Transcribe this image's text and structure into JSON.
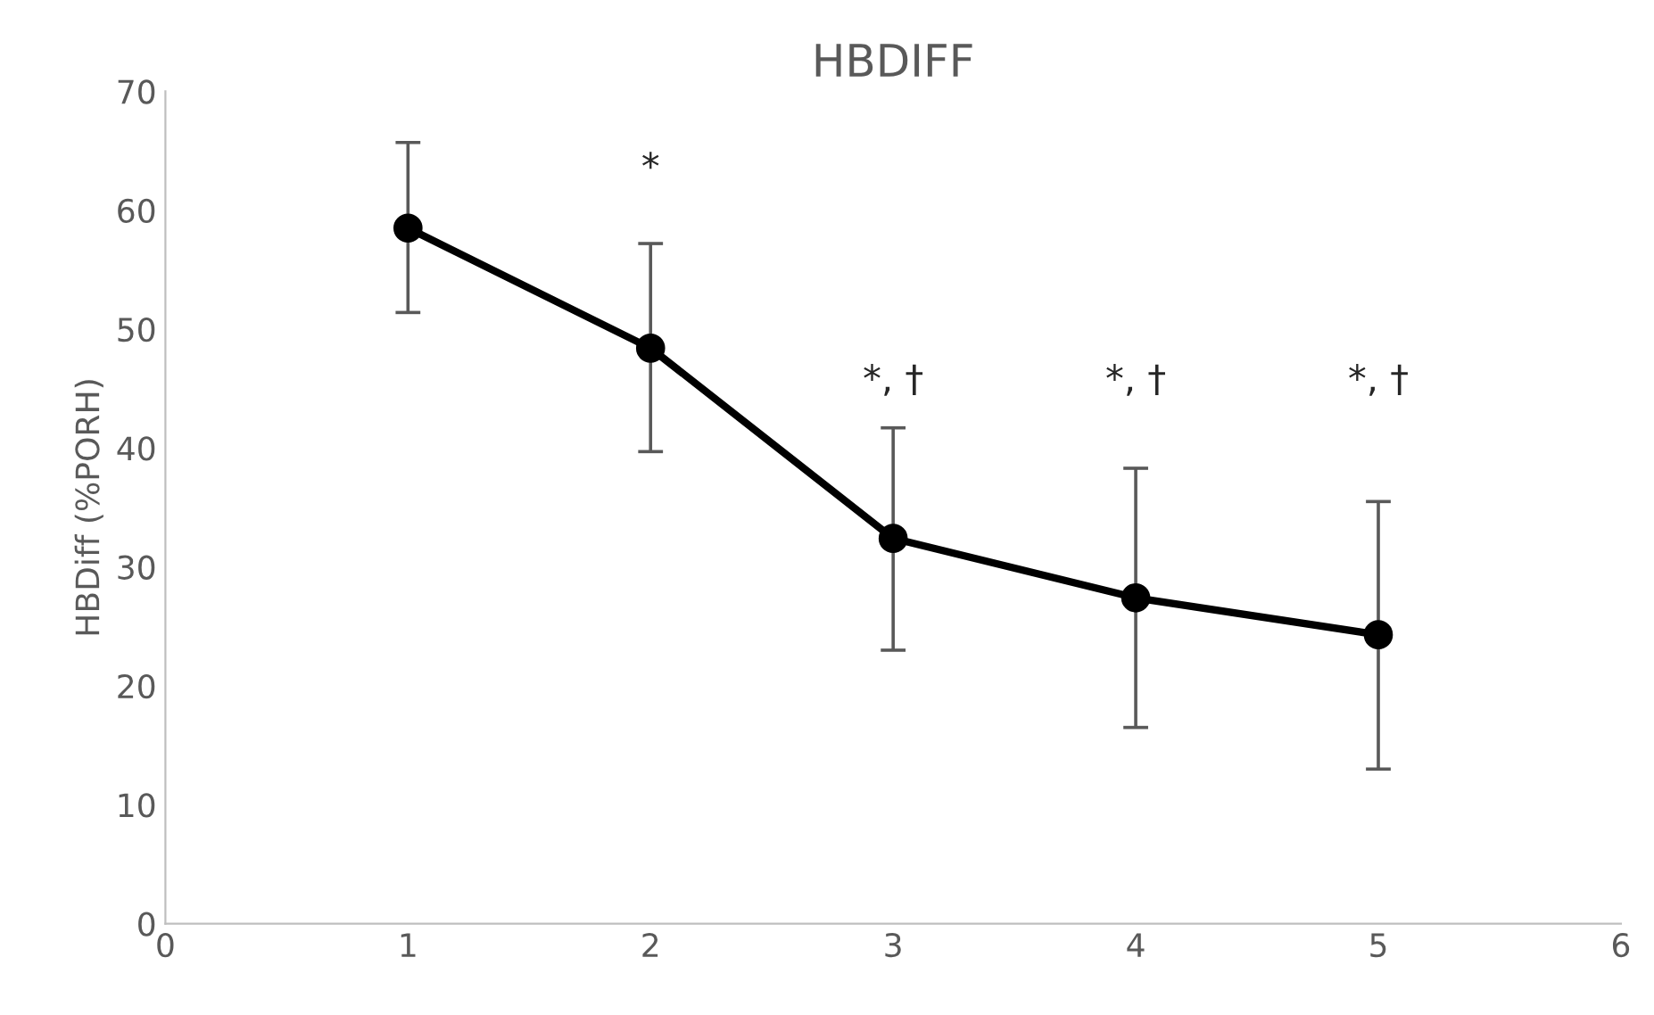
{
  "chart_data": {
    "type": "line",
    "title": "HBDIFF",
    "ylabel": "HBDiff (%PORH)",
    "x": [
      1,
      2,
      3,
      4,
      5
    ],
    "series": [
      {
        "color": "#000000",
        "values": [
          58.5,
          48.4,
          32.4,
          27.4,
          24.3
        ],
        "errors": [
          [
            51.4,
            65.7
          ],
          [
            39.7,
            57.2
          ],
          [
            23,
            41.7
          ],
          [
            16.5,
            38.3
          ],
          [
            13,
            35.5
          ]
        ]
      }
    ],
    "xlim": [
      0,
      6
    ],
    "xticks": [
      0,
      1,
      2,
      3,
      4,
      5,
      6
    ],
    "ylim": [
      0,
      70
    ],
    "yticks": [
      0,
      10,
      20,
      30,
      40,
      50,
      60,
      70
    ],
    "grid": false,
    "legend": false,
    "marker": "circle",
    "line_style": "solid",
    "annotations": [
      "*",
      "*, †",
      "*, †",
      "*, †"
    ]
  }
}
